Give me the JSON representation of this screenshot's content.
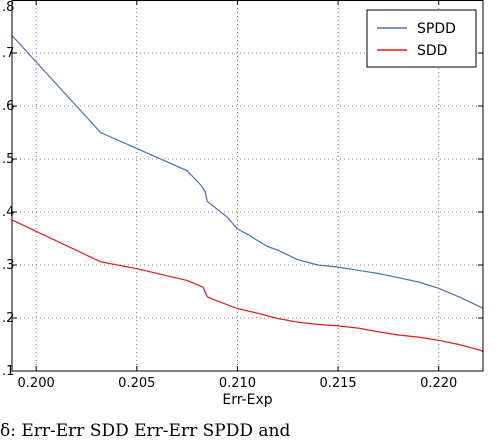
{
  "chart_data": {
    "type": "line",
    "title": "",
    "xlabel": "Err-Exp",
    "ylabel": "",
    "xlim": [
      0.1988,
      0.2222
    ],
    "ylim": [
      0.1,
      0.8
    ],
    "grid": true,
    "legend_position": "top-right",
    "x_ticks": [
      0.2,
      0.205,
      0.21,
      0.215,
      0.22
    ],
    "x_tick_labels": [
      "0.200",
      "0.205",
      "0.210",
      "0.215",
      "0.220"
    ],
    "y_ticks": [
      0.1,
      0.2,
      0.3,
      0.4,
      0.5,
      0.6,
      0.7,
      0.8
    ],
    "y_tick_labels": [
      ".1",
      ".2",
      ".3",
      ".4",
      ".5",
      ".6",
      ".7",
      ".8"
    ],
    "series": [
      {
        "name": "SPDD",
        "color": "#4a72b0",
        "x": [
          0.1988,
          0.2032,
          0.2075,
          0.2082,
          0.2084,
          0.2085,
          0.209,
          0.2095,
          0.21,
          0.2105,
          0.211,
          0.2115,
          0.212,
          0.213,
          0.214,
          0.215,
          0.216,
          0.217,
          0.218,
          0.219,
          0.22,
          0.221,
          0.222,
          0.2222
        ],
        "y": [
          0.733,
          0.55,
          0.478,
          0.45,
          0.438,
          0.42,
          0.405,
          0.39,
          0.368,
          0.358,
          0.346,
          0.335,
          0.328,
          0.31,
          0.3,
          0.296,
          0.29,
          0.284,
          0.276,
          0.268,
          0.256,
          0.24,
          0.222,
          0.218
        ]
      },
      {
        "name": "SDD",
        "color": "#e31a1c",
        "x": [
          0.1988,
          0.2032,
          0.205,
          0.2075,
          0.2083,
          0.2085,
          0.209,
          0.21,
          0.211,
          0.212,
          0.213,
          0.214,
          0.215,
          0.216,
          0.217,
          0.218,
          0.219,
          0.22,
          0.221,
          0.2215,
          0.222,
          0.2222
        ],
        "y": [
          0.385,
          0.306,
          0.293,
          0.271,
          0.258,
          0.24,
          0.232,
          0.218,
          0.209,
          0.199,
          0.192,
          0.188,
          0.185,
          0.181,
          0.174,
          0.168,
          0.164,
          0.158,
          0.15,
          0.145,
          0.14,
          0.137
        ]
      }
    ]
  },
  "caption": {
    "text": "δ:  Err-Err        SDD  Err-Err        SPDD  and"
  }
}
